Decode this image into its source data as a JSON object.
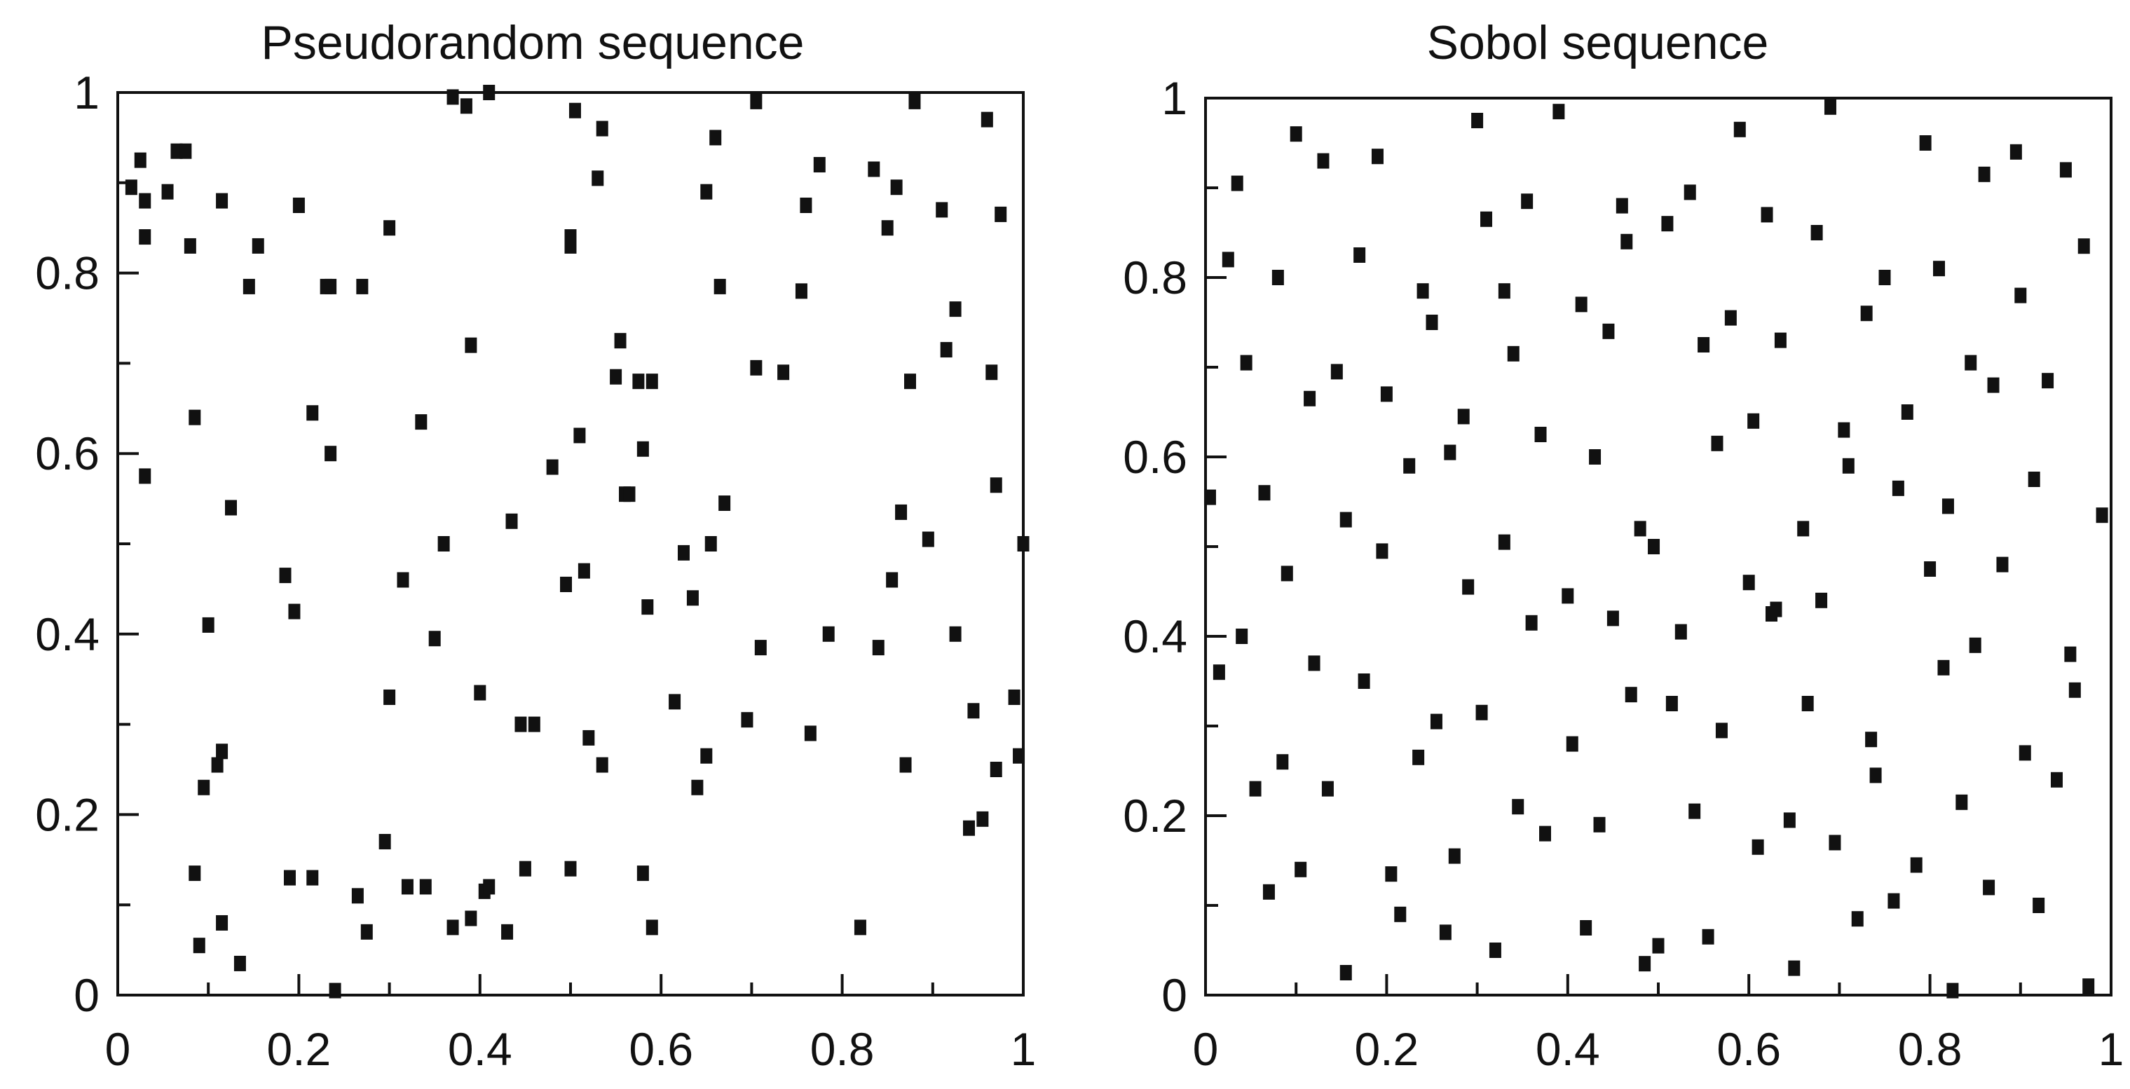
{
  "chart_data": [
    {
      "type": "scatter",
      "title": "Pseudorandom sequence",
      "xlim": [
        0,
        1
      ],
      "ylim": [
        0,
        1
      ],
      "xticks": [
        "0",
        "0.2",
        "0.4",
        "0.6",
        "0.8",
        "1"
      ],
      "yticks": [
        "0",
        "0.2",
        "0.4",
        "0.6",
        "0.8",
        "1"
      ],
      "grid": false,
      "series": [
        {
          "points": [
            [
              0.015,
              0.895
            ],
            [
              0.025,
              0.925
            ],
            [
              0.03,
              0.88
            ],
            [
              0.03,
              0.84
            ],
            [
              0.03,
              0.575
            ],
            [
              0.055,
              0.89
            ],
            [
              0.065,
              0.935
            ],
            [
              0.075,
              0.935
            ],
            [
              0.08,
              0.83
            ],
            [
              0.085,
              0.64
            ],
            [
              0.085,
              0.135
            ],
            [
              0.09,
              0.055
            ],
            [
              0.095,
              0.23
            ],
            [
              0.1,
              0.41
            ],
            [
              0.11,
              0.255
            ],
            [
              0.115,
              0.27
            ],
            [
              0.115,
              0.88
            ],
            [
              0.115,
              0.08
            ],
            [
              0.125,
              0.54
            ],
            [
              0.135,
              0.035
            ],
            [
              0.145,
              0.785
            ],
            [
              0.155,
              0.83
            ],
            [
              0.185,
              0.465
            ],
            [
              0.19,
              0.13
            ],
            [
              0.195,
              0.425
            ],
            [
              0.2,
              0.875
            ],
            [
              0.215,
              0.645
            ],
            [
              0.215,
              0.13
            ],
            [
              0.23,
              0.785
            ],
            [
              0.235,
              0.785
            ],
            [
              0.235,
              0.6
            ],
            [
              0.24,
              0.005
            ],
            [
              0.265,
              0.11
            ],
            [
              0.27,
              0.785
            ],
            [
              0.275,
              0.07
            ],
            [
              0.295,
              0.17
            ],
            [
              0.3,
              0.85
            ],
            [
              0.3,
              0.33
            ],
            [
              0.315,
              0.46
            ],
            [
              0.32,
              0.12
            ],
            [
              0.335,
              0.635
            ],
            [
              0.34,
              0.12
            ],
            [
              0.35,
              0.395
            ],
            [
              0.36,
              0.5
            ],
            [
              0.37,
              0.995
            ],
            [
              0.37,
              0.075
            ],
            [
              0.385,
              0.985
            ],
            [
              0.39,
              0.72
            ],
            [
              0.39,
              0.085
            ],
            [
              0.4,
              0.335
            ],
            [
              0.405,
              0.115
            ],
            [
              0.41,
              0.12
            ],
            [
              0.41,
              1.0
            ],
            [
              0.43,
              0.07
            ],
            [
              0.435,
              0.525
            ],
            [
              0.445,
              0.3
            ],
            [
              0.45,
              0.14
            ],
            [
              0.46,
              0.3
            ],
            [
              0.48,
              0.585
            ],
            [
              0.495,
              0.455
            ],
            [
              0.5,
              0.84
            ],
            [
              0.5,
              0.83
            ],
            [
              0.5,
              0.14
            ],
            [
              0.505,
              0.98
            ],
            [
              0.51,
              0.62
            ],
            [
              0.515,
              0.47
            ],
            [
              0.52,
              0.285
            ],
            [
              0.53,
              0.905
            ],
            [
              0.535,
              0.96
            ],
            [
              0.535,
              0.255
            ],
            [
              0.55,
              0.685
            ],
            [
              0.555,
              0.725
            ],
            [
              0.56,
              0.555
            ],
            [
              0.565,
              0.555
            ],
            [
              0.575,
              0.68
            ],
            [
              0.58,
              0.605
            ],
            [
              0.58,
              0.135
            ],
            [
              0.585,
              0.43
            ],
            [
              0.59,
              0.68
            ],
            [
              0.59,
              0.075
            ],
            [
              0.615,
              0.325
            ],
            [
              0.625,
              0.49
            ],
            [
              0.635,
              0.44
            ],
            [
              0.64,
              0.23
            ],
            [
              0.65,
              0.89
            ],
            [
              0.65,
              0.265
            ],
            [
              0.655,
              0.5
            ],
            [
              0.66,
              0.95
            ],
            [
              0.665,
              0.785
            ],
            [
              0.67,
              0.545
            ],
            [
              0.695,
              0.305
            ],
            [
              0.705,
              0.99
            ],
            [
              0.705,
              0.695
            ],
            [
              0.71,
              0.385
            ],
            [
              0.735,
              0.69
            ],
            [
              0.755,
              0.78
            ],
            [
              0.76,
              0.875
            ],
            [
              0.765,
              0.29
            ],
            [
              0.775,
              0.92
            ],
            [
              0.785,
              0.4
            ],
            [
              0.82,
              0.075
            ],
            [
              0.835,
              0.915
            ],
            [
              0.84,
              0.385
            ],
            [
              0.85,
              0.85
            ],
            [
              0.855,
              0.46
            ],
            [
              0.86,
              0.895
            ],
            [
              0.865,
              0.535
            ],
            [
              0.87,
              0.255
            ],
            [
              0.875,
              0.68
            ],
            [
              0.88,
              0.99
            ],
            [
              0.895,
              0.505
            ],
            [
              0.91,
              0.87
            ],
            [
              0.915,
              0.715
            ],
            [
              0.925,
              0.76
            ],
            [
              0.925,
              0.4
            ],
            [
              0.94,
              0.185
            ],
            [
              0.945,
              0.315
            ],
            [
              0.955,
              0.195
            ],
            [
              0.96,
              0.97
            ],
            [
              0.965,
              0.69
            ],
            [
              0.97,
              0.25
            ],
            [
              0.97,
              0.565
            ],
            [
              0.975,
              0.865
            ],
            [
              0.99,
              0.33
            ],
            [
              0.995,
              0.265
            ],
            [
              1.0,
              0.5
            ]
          ]
        }
      ]
    },
    {
      "type": "scatter",
      "title": "Sobol sequence",
      "xlim": [
        0,
        1
      ],
      "ylim": [
        0,
        1
      ],
      "xticks": [
        "0",
        "0.2",
        "0.4",
        "0.6",
        "0.8",
        "1"
      ],
      "yticks": [
        "0",
        "0.2",
        "0.4",
        "0.6",
        "0.8",
        "1"
      ],
      "grid": false,
      "series": [
        {
          "points": [
            [
              0.005,
              0.555
            ],
            [
              0.015,
              0.36
            ],
            [
              0.025,
              0.82
            ],
            [
              0.035,
              0.905
            ],
            [
              0.04,
              0.4
            ],
            [
              0.045,
              0.705
            ],
            [
              0.055,
              0.23
            ],
            [
              0.065,
              0.56
            ],
            [
              0.07,
              0.115
            ],
            [
              0.08,
              0.8
            ],
            [
              0.085,
              0.26
            ],
            [
              0.09,
              0.47
            ],
            [
              0.1,
              0.96
            ],
            [
              0.105,
              0.14
            ],
            [
              0.115,
              0.665
            ],
            [
              0.12,
              0.37
            ],
            [
              0.13,
              0.93
            ],
            [
              0.135,
              0.23
            ],
            [
              0.145,
              0.695
            ],
            [
              0.155,
              0.53
            ],
            [
              0.155,
              0.025
            ],
            [
              0.17,
              0.825
            ],
            [
              0.175,
              0.35
            ],
            [
              0.19,
              0.935
            ],
            [
              0.195,
              0.495
            ],
            [
              0.2,
              0.67
            ],
            [
              0.205,
              0.135
            ],
            [
              0.215,
              0.09
            ],
            [
              0.225,
              0.59
            ],
            [
              0.235,
              0.265
            ],
            [
              0.24,
              0.785
            ],
            [
              0.25,
              0.75
            ],
            [
              0.255,
              0.305
            ],
            [
              0.265,
              0.07
            ],
            [
              0.27,
              0.605
            ],
            [
              0.275,
              0.155
            ],
            [
              0.285,
              0.645
            ],
            [
              0.29,
              0.455
            ],
            [
              0.3,
              0.975
            ],
            [
              0.305,
              0.315
            ],
            [
              0.31,
              0.865
            ],
            [
              0.32,
              0.05
            ],
            [
              0.33,
              0.785
            ],
            [
              0.33,
              0.505
            ],
            [
              0.34,
              0.715
            ],
            [
              0.345,
              0.21
            ],
            [
              0.355,
              0.885
            ],
            [
              0.36,
              0.415
            ],
            [
              0.37,
              0.625
            ],
            [
              0.375,
              0.18
            ],
            [
              0.39,
              0.985
            ],
            [
              0.4,
              0.445
            ],
            [
              0.405,
              0.28
            ],
            [
              0.415,
              0.77
            ],
            [
              0.42,
              0.075
            ],
            [
              0.43,
              0.6
            ],
            [
              0.435,
              0.19
            ],
            [
              0.445,
              0.74
            ],
            [
              0.45,
              0.42
            ],
            [
              0.46,
              0.88
            ],
            [
              0.465,
              0.84
            ],
            [
              0.47,
              0.335
            ],
            [
              0.48,
              0.52
            ],
            [
              0.485,
              0.035
            ],
            [
              0.495,
              0.5
            ],
            [
              0.5,
              0.055
            ],
            [
              0.51,
              0.86
            ],
            [
              0.515,
              0.325
            ],
            [
              0.525,
              0.405
            ],
            [
              0.535,
              0.895
            ],
            [
              0.54,
              0.205
            ],
            [
              0.55,
              0.725
            ],
            [
              0.555,
              0.065
            ],
            [
              0.565,
              0.615
            ],
            [
              0.57,
              0.295
            ],
            [
              0.58,
              0.755
            ],
            [
              0.59,
              0.965
            ],
            [
              0.6,
              0.46
            ],
            [
              0.605,
              0.64
            ],
            [
              0.61,
              0.165
            ],
            [
              0.62,
              0.87
            ],
            [
              0.625,
              0.425
            ],
            [
              0.63,
              0.43
            ],
            [
              0.635,
              0.73
            ],
            [
              0.645,
              0.195
            ],
            [
              0.65,
              0.03
            ],
            [
              0.66,
              0.52
            ],
            [
              0.665,
              0.325
            ],
            [
              0.675,
              0.85
            ],
            [
              0.68,
              0.44
            ],
            [
              0.69,
              0.99
            ],
            [
              0.695,
              0.17
            ],
            [
              0.705,
              0.63
            ],
            [
              0.71,
              0.59
            ],
            [
              0.72,
              0.085
            ],
            [
              0.73,
              0.76
            ],
            [
              0.735,
              0.285
            ],
            [
              0.74,
              0.245
            ],
            [
              0.75,
              0.8
            ],
            [
              0.76,
              0.105
            ],
            [
              0.765,
              0.565
            ],
            [
              0.775,
              0.65
            ],
            [
              0.785,
              0.145
            ],
            [
              0.795,
              0.95
            ],
            [
              0.8,
              0.475
            ],
            [
              0.81,
              0.81
            ],
            [
              0.815,
              0.365
            ],
            [
              0.82,
              0.545
            ],
            [
              0.825,
              0.005
            ],
            [
              0.835,
              0.215
            ],
            [
              0.845,
              0.705
            ],
            [
              0.85,
              0.39
            ],
            [
              0.86,
              0.915
            ],
            [
              0.865,
              0.12
            ],
            [
              0.87,
              0.68
            ],
            [
              0.88,
              0.48
            ],
            [
              0.895,
              0.94
            ],
            [
              0.9,
              0.78
            ],
            [
              0.905,
              0.27
            ],
            [
              0.915,
              0.575
            ],
            [
              0.92,
              0.1
            ],
            [
              0.93,
              0.685
            ],
            [
              0.94,
              0.24
            ],
            [
              0.95,
              0.92
            ],
            [
              0.955,
              0.38
            ],
            [
              0.96,
              0.34
            ],
            [
              0.97,
              0.835
            ],
            [
              0.975,
              0.01
            ],
            [
              0.99,
              0.535
            ]
          ]
        }
      ]
    }
  ]
}
